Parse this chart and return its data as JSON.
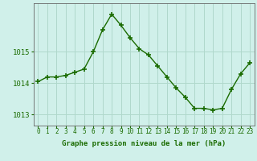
{
  "x": [
    0,
    1,
    2,
    3,
    4,
    5,
    6,
    7,
    8,
    9,
    10,
    11,
    12,
    13,
    14,
    15,
    16,
    17,
    18,
    19,
    20,
    21,
    22,
    23
  ],
  "y": [
    1014.05,
    1014.2,
    1014.2,
    1014.25,
    1014.35,
    1014.45,
    1015.0,
    1015.7,
    1016.2,
    1015.85,
    1015.45,
    1015.1,
    1014.9,
    1014.55,
    1014.2,
    1013.85,
    1013.55,
    1013.2,
    1013.2,
    1013.15,
    1013.2,
    1013.8,
    1014.3,
    1014.65
  ],
  "line_color": "#1a6b00",
  "marker": "+",
  "marker_size": 4,
  "bg_color": "#d0f0ea",
  "grid_color": "#b0d8cc",
  "ylabel_ticks": [
    1013,
    1014,
    1015
  ],
  "ylim": [
    1012.65,
    1016.55
  ],
  "xlim": [
    -0.5,
    23.5
  ],
  "xlabel": "Graphe pression niveau de la mer (hPa)",
  "xlabel_color": "#1a6b00",
  "tick_color": "#1a6b00",
  "tick_fontsize": 5.5,
  "xlabel_fontsize": 6.5,
  "ytick_fontsize": 6.5
}
